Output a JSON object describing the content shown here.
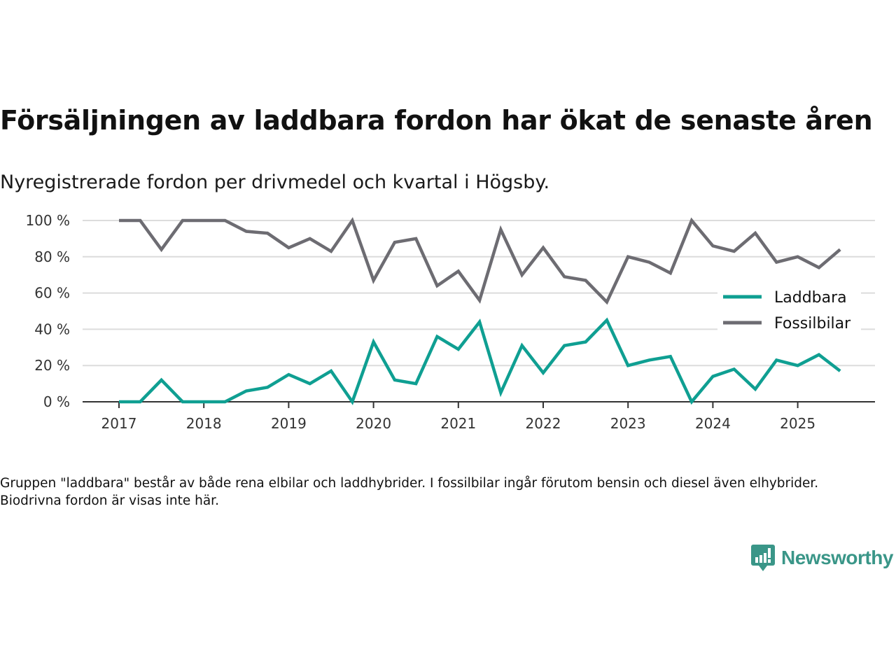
{
  "title": "Försäljningen av laddbara fordon har ökat de senaste åren",
  "subtitle": "Nyregistrerade fordon per drivmedel och kvartal i Högsby.",
  "note": "Gruppen \"laddbara\" består av både rena elbilar och laddhybrider. I fossilbilar ingår förutom bensin och diesel även elhybrider. Biodrivna fordon är visas inte här.",
  "logo": {
    "text": "Newsworthy",
    "icon": "newsworthy-logo-icon",
    "color": "#3a9688"
  },
  "chart_data": {
    "type": "line",
    "title": "Försäljningen av laddbara fordon har ökat de senaste åren",
    "xlabel": "",
    "ylabel": "",
    "ylim": [
      0,
      100
    ],
    "yticks": [
      0,
      20,
      40,
      60,
      80,
      100
    ],
    "ytick_labels": [
      "0 %",
      "20 %",
      "40 %",
      "60 %",
      "80 %",
      "100 %"
    ],
    "xticks": [
      "2017",
      "2018",
      "2019",
      "2020",
      "2021",
      "2022",
      "2023",
      "2024",
      "2025"
    ],
    "grid": true,
    "legend_position": "right",
    "x": [
      "2017Q1",
      "2017Q2",
      "2017Q3",
      "2017Q4",
      "2018Q1",
      "2018Q2",
      "2018Q3",
      "2018Q4",
      "2019Q1",
      "2019Q2",
      "2019Q3",
      "2019Q4",
      "2020Q1",
      "2020Q2",
      "2020Q3",
      "2020Q4",
      "2021Q1",
      "2021Q2",
      "2021Q3",
      "2021Q4",
      "2022Q1",
      "2022Q2",
      "2022Q3",
      "2022Q4",
      "2023Q1",
      "2023Q2",
      "2023Q3",
      "2023Q4",
      "2024Q1",
      "2024Q2",
      "2024Q3",
      "2024Q4",
      "2025Q1",
      "2025Q2",
      "2025Q3"
    ],
    "series": [
      {
        "name": "Laddbara",
        "color": "#0f9f92",
        "values": [
          0,
          0,
          12,
          0,
          0,
          0,
          6,
          8,
          15,
          10,
          17,
          0,
          33,
          12,
          10,
          36,
          29,
          44,
          5,
          31,
          16,
          31,
          33,
          45,
          20,
          23,
          25,
          0,
          14,
          18,
          7,
          23,
          20,
          26,
          17
        ]
      },
      {
        "name": "Fossilbilar",
        "color": "#6d6c72",
        "values": [
          100,
          100,
          84,
          100,
          100,
          100,
          94,
          93,
          85,
          90,
          83,
          100,
          67,
          88,
          90,
          64,
          72,
          56,
          95,
          70,
          85,
          69,
          67,
          55,
          80,
          77,
          71,
          100,
          86,
          83,
          93,
          77,
          80,
          74,
          84
        ]
      }
    ]
  }
}
